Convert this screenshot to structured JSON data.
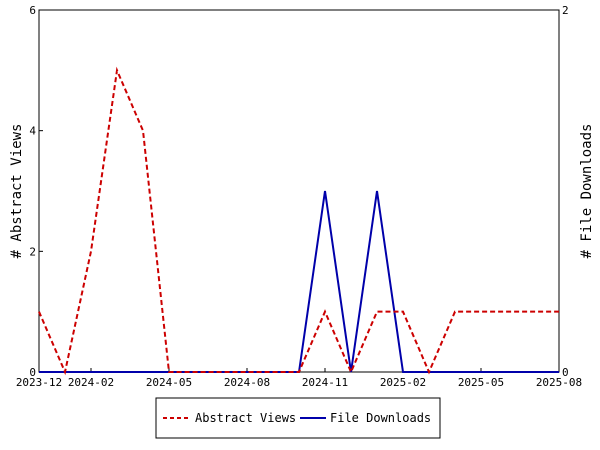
{
  "chart_data": {
    "type": "line",
    "x": [
      "2023-12",
      "2024-01",
      "2024-02",
      "2024-03",
      "2024-04",
      "2024-05",
      "2024-06",
      "2024-07",
      "2024-08",
      "2024-09",
      "2024-10",
      "2024-11",
      "2024-12",
      "2025-01",
      "2025-02",
      "2025-03",
      "2025-04",
      "2025-05",
      "2025-06",
      "2025-07",
      "2025-08"
    ],
    "xticks": [
      "2023-12",
      "2024-02",
      "2024-05",
      "2024-08",
      "2024-11",
      "2025-02",
      "2025-05",
      "2025-08"
    ],
    "series": [
      {
        "name": "Abstract Views",
        "axis": "left",
        "color": "#cc0000",
        "style": "dashed",
        "values": [
          1,
          0,
          2,
          5,
          4,
          0,
          0,
          0,
          0,
          0,
          0,
          1,
          0,
          1,
          1,
          0,
          1,
          1,
          1,
          1,
          1
        ]
      },
      {
        "name": "File Downloads",
        "axis": "right",
        "color": "#0000aa",
        "style": "solid",
        "values": [
          0,
          0,
          0,
          0,
          0,
          0,
          0,
          0,
          0,
          0,
          0,
          1,
          0,
          1,
          0,
          0,
          0,
          0,
          0,
          0,
          0
        ]
      }
    ],
    "ylabel": "# Abstract Views",
    "y2label": "# File Downloads",
    "ylim": [
      0,
      6
    ],
    "yticks": [
      0,
      2,
      4,
      6
    ],
    "y2lim": [
      0,
      2
    ],
    "y2ticks": [
      0,
      2
    ],
    "grid": false,
    "legend_position": "bottom-center"
  }
}
